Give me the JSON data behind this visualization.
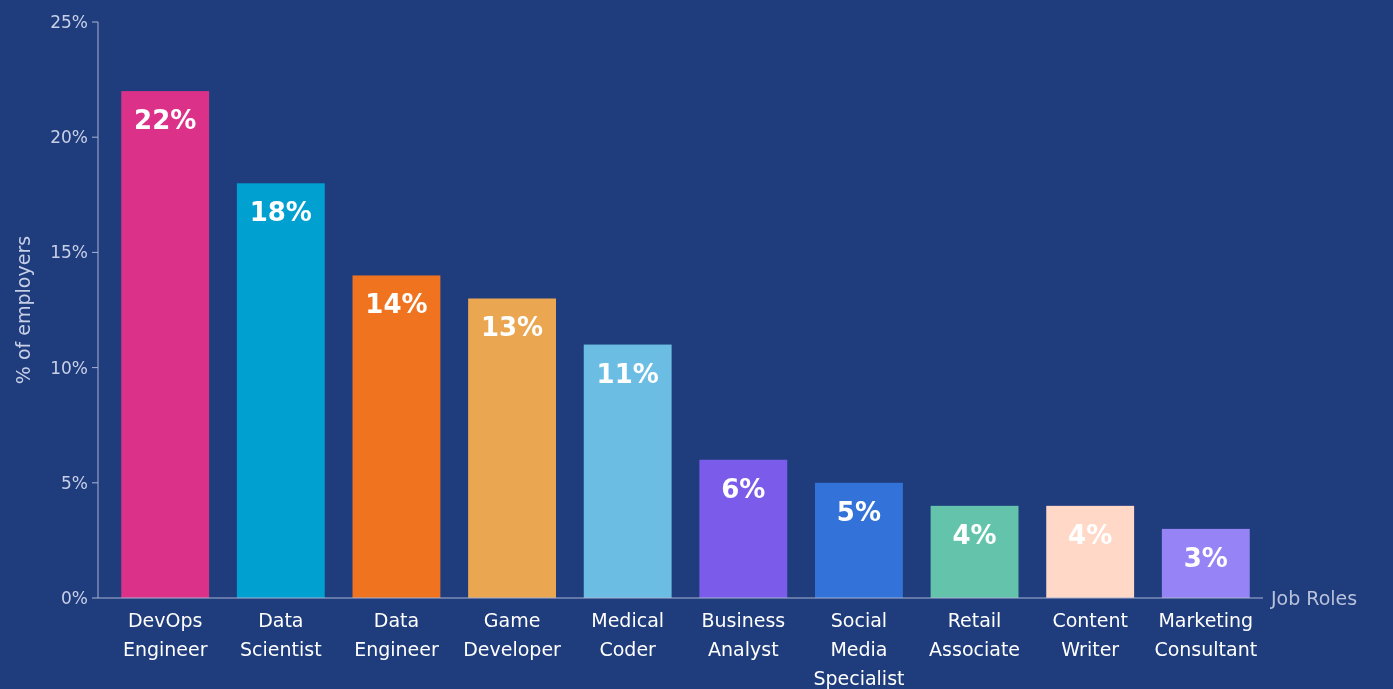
{
  "chart_data": {
    "type": "bar",
    "xlabel": "Job Roles",
    "ylabel": "% of employers",
    "categories": [
      "DevOps Engineer",
      "Data Scientist",
      "Data Engineer",
      "Game Developer",
      "Medical Coder",
      "Business Analyst",
      "Social Media Specialist",
      "Retail Associate",
      "Content Writer",
      "Marketing Consultant"
    ],
    "values": [
      22,
      18,
      14,
      13,
      11,
      6,
      5,
      4,
      4,
      3
    ],
    "colors": [
      "#dc3189",
      "#00a0d0",
      "#f07320",
      "#eaa651",
      "#6bbde4",
      "#7b5cea",
      "#3373d9",
      "#63c4ab",
      "#ffd8c8",
      "#9683f5"
    ],
    "value_labels": [
      "22%",
      "18%",
      "14%",
      "13%",
      "11%",
      "6%",
      "5%",
      "4%",
      "4%",
      "3%"
    ],
    "ylim": [
      0,
      25
    ],
    "yticks": [
      {
        "value": 0,
        "label": "0%"
      },
      {
        "value": 5,
        "label": "5%"
      },
      {
        "value": 10,
        "label": "10%"
      },
      {
        "value": 15,
        "label": "15%"
      },
      {
        "value": 20,
        "label": "20%"
      },
      {
        "value": 25,
        "label": "25%"
      }
    ],
    "grid": false
  }
}
